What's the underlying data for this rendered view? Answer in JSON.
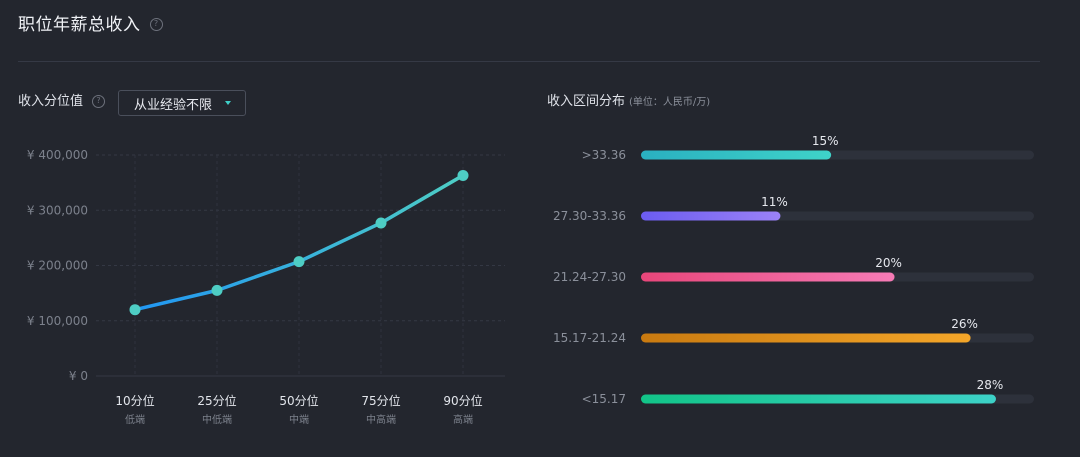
{
  "title": "职位年薪总收入",
  "help_glyph": "?",
  "left": {
    "label": "收入分位值",
    "dropdown_value": "从业经验不限"
  },
  "right": {
    "label": "收入区间分布",
    "unit": "(单位：人民币/万)"
  },
  "colors": {
    "line_start": "#2196f3",
    "line_end": "#4ecdc4",
    "bar_track": "#2d313b",
    "background": "#23262e"
  },
  "chart_data": [
    {
      "type": "line",
      "categories": [
        "10分位",
        "25分位",
        "50分位",
        "75分位",
        "90分位"
      ],
      "category_sublabels": [
        "低端",
        "中低端",
        "中端",
        "中高端",
        "高端"
      ],
      "values": [
        120000,
        155000,
        207000,
        277000,
        363000
      ],
      "ylim": [
        0,
        400000
      ],
      "yticks": [
        0,
        100000,
        200000,
        300000,
        400000
      ],
      "ytick_labels": [
        "¥ 0",
        "¥ 100,000",
        "¥ 200,000",
        "¥ 300,000",
        "¥ 400,000"
      ],
      "grid": true
    },
    {
      "type": "bar",
      "orientation": "horizontal",
      "categories": [
        ">33.36",
        "27.30-33.36",
        "21.24-27.30",
        "15.17-21.24",
        "<15.17"
      ],
      "values": [
        15,
        11,
        20,
        26,
        28
      ],
      "value_labels": [
        "15%",
        "11%",
        "20%",
        "26%",
        "28%"
      ],
      "xlim": [
        0,
        31
      ],
      "colors": [
        [
          "#2ab0c0",
          "#3fd3c9"
        ],
        [
          "#6b5cf0",
          "#9b82f7"
        ],
        [
          "#e8467a",
          "#f67bb6"
        ],
        [
          "#c97a10",
          "#f4a629"
        ],
        [
          "#12c488",
          "#3dd2c8"
        ]
      ]
    }
  ]
}
